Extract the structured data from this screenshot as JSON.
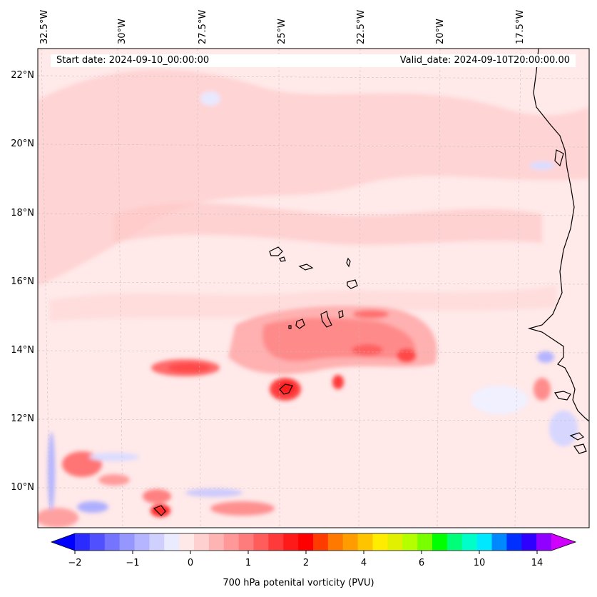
{
  "map": {
    "start_date": "Start date: 2024-09-10_00:00:00",
    "valid_date": "Valid_date: 2024-09-10T20:00:00.00",
    "lon_labels": [
      "32.5°W",
      "30°W",
      "27.5°W",
      "25°W",
      "22.5°W",
      "20°W",
      "17.5°W"
    ],
    "lat_labels": [
      "22°N",
      "20°N",
      "18°N",
      "16°N",
      "14°N",
      "12°N",
      "10°N"
    ]
  },
  "colorbar": {
    "label": "700 hPa potenital vorticity (PVU)",
    "ticks": [
      "−2",
      "−1",
      "0",
      "1",
      "2",
      "4",
      "6",
      "10",
      "14"
    ],
    "colors": [
      "#0000ff",
      "#2b2bff",
      "#5050ff",
      "#7474ff",
      "#9696ff",
      "#b4b4ff",
      "#d0d0ff",
      "#ebebff",
      "#ffe8e8",
      "#ffd0d0",
      "#ffb4b4",
      "#ff9898",
      "#ff7c7c",
      "#ff5c5c",
      "#ff3a3a",
      "#ff1a1a",
      "#ff0000",
      "#ff3c00",
      "#ff7800",
      "#ff9c00",
      "#ffc400",
      "#ffec00",
      "#e0f000",
      "#b4ff00",
      "#78ff00",
      "#00ff00",
      "#00ff78",
      "#00ffc8",
      "#00e8ff",
      "#0088ff",
      "#0030ff",
      "#3000ff",
      "#9000ff",
      "#d000ff"
    ]
  }
}
